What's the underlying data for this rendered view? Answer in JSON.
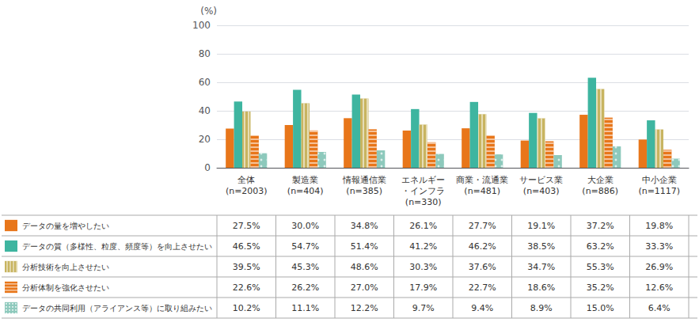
{
  "chart_data": {
    "type": "bar",
    "ylabel": "(%)",
    "categories": [
      "全体\n(n=2003)",
      "製造業\n(n=404)",
      "情報通信業\n(n=385)",
      "エネルギー\n・インフラ\n(n=330)",
      "商業・流通業\n(n=481)",
      "サービス業\n(n=403)",
      "大企業\n(n=886)",
      "中小企業\n(n=1117)"
    ],
    "series": [
      {
        "name": "データの量を増やしたい",
        "color": "#E8761A",
        "values": [
          27.5,
          30.0,
          34.8,
          26.1,
          27.7,
          19.1,
          37.2,
          19.8
        ],
        "value_labels": [
          "27.5%",
          "30.0%",
          "34.8%",
          "26.1%",
          "27.7%",
          "19.1%",
          "37.2%",
          "19.8%"
        ]
      },
      {
        "name": "データの質（多様性、粒度、頻度等）を向上させたい",
        "color": "#3EB5A0",
        "values": [
          46.5,
          54.7,
          51.4,
          41.2,
          46.2,
          38.5,
          63.2,
          33.3
        ],
        "value_labels": [
          "46.5%",
          "54.7%",
          "51.4%",
          "41.2%",
          "46.2%",
          "38.5%",
          "63.2%",
          "33.3%"
        ]
      },
      {
        "name": "分析技術を向上させたい",
        "color": "#C8B460",
        "values": [
          39.5,
          45.3,
          48.6,
          30.3,
          37.6,
          34.7,
          55.3,
          26.9
        ],
        "value_labels": [
          "39.5%",
          "45.3%",
          "48.6%",
          "30.3%",
          "37.6%",
          "34.7%",
          "55.3%",
          "26.9%"
        ]
      },
      {
        "name": "分析体制を強化させたい",
        "color": "#E8761A",
        "values": [
          22.6,
          26.2,
          27.0,
          17.9,
          22.7,
          18.6,
          35.2,
          12.6
        ],
        "value_labels": [
          "22.6%",
          "26.2%",
          "27.0%",
          "17.9%",
          "22.7%",
          "18.6%",
          "35.2%",
          "12.6%"
        ]
      },
      {
        "name": "データの共同利用（アライアンス等）に取り組みたい",
        "color": "#8DC9BC",
        "values": [
          10.2,
          11.1,
          12.2,
          9.7,
          9.4,
          8.9,
          15.0,
          6.4
        ],
        "value_labels": [
          "10.2%",
          "11.1%",
          "12.2%",
          "9.7%",
          "9.4%",
          "8.9%",
          "15.0%",
          "6.4%"
        ]
      }
    ],
    "ylim": [
      0,
      100
    ],
    "yticks": [
      0,
      20,
      40,
      60,
      80,
      100
    ],
    "grid": true
  }
}
